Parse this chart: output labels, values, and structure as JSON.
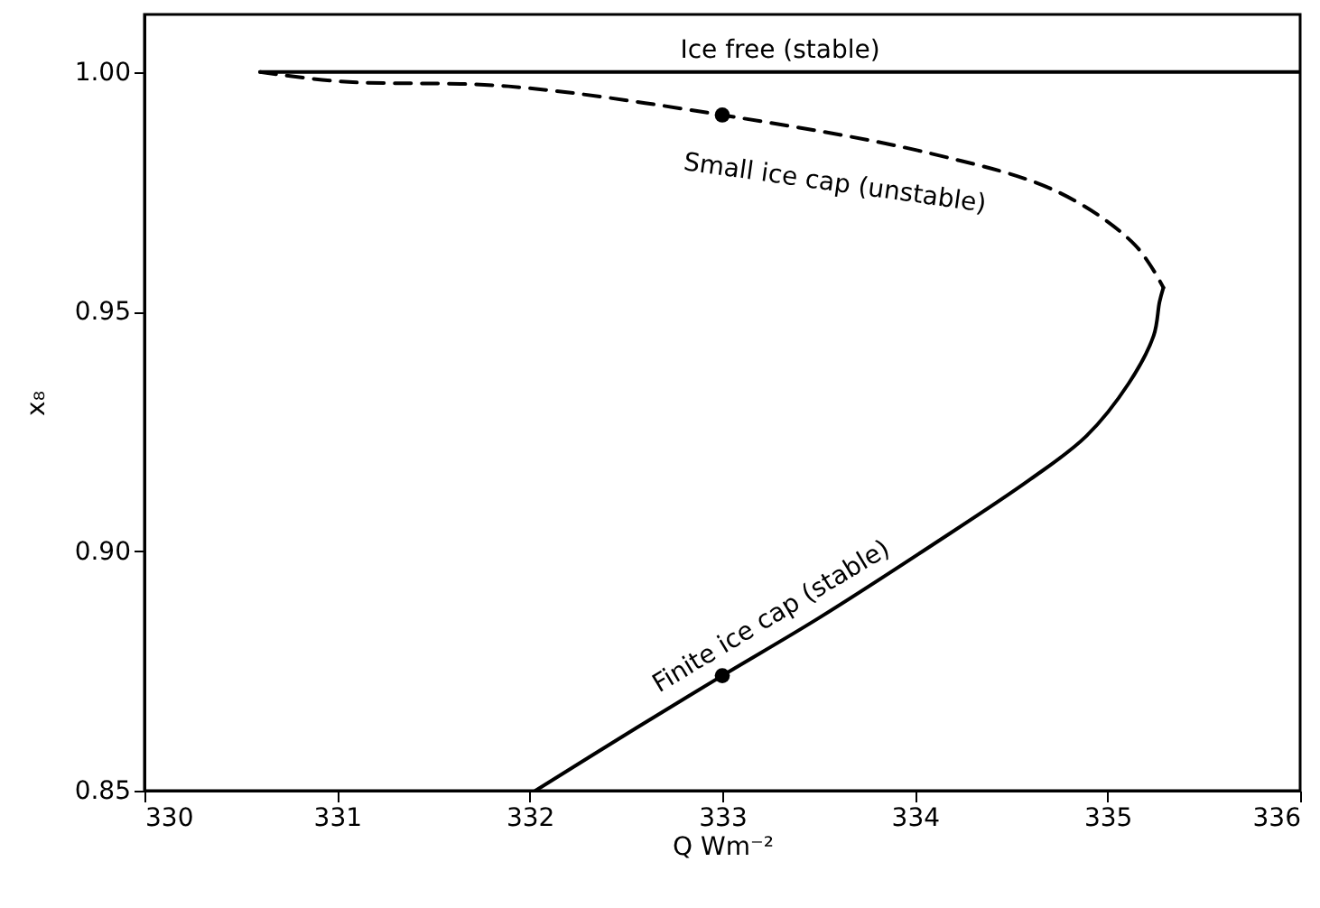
{
  "chart_data": {
    "type": "line",
    "xlabel": "Q Wm⁻²",
    "ylabel": "x₈",
    "xlim": [
      330,
      336
    ],
    "xticks": [
      330,
      331,
      332,
      333,
      334,
      335,
      336
    ],
    "ylim": [
      0.85,
      1.012
    ],
    "yticks": [
      0.85,
      {
        "value": 0.9,
        "label": "0.90"
      },
      0.95,
      {
        "value": 1,
        "label": "1.00"
      }
    ],
    "grid": false,
    "series": [
      {
        "name": "Ice free (stable)",
        "color": "#000000",
        "line_style": "solid",
        "x": [
          330.6,
          336
        ],
        "values": [
          1.0,
          1.0
        ]
      },
      {
        "name": "Small ice cap (unstable)",
        "color": "#000000",
        "line_style": "dashed",
        "x": [
          330.6,
          331.02,
          331.89,
          333.0,
          334.08,
          334.74,
          335.14,
          335.29
        ],
        "values": [
          1.0,
          0.998,
          0.997,
          0.991,
          0.983,
          0.975,
          0.964,
          0.955
        ]
      },
      {
        "name": "Finite ice cap (stable)",
        "color": "#000000",
        "line_style": "solid",
        "x": [
          335.29,
          335.27,
          335.24,
          335.11,
          334.89,
          334.6,
          334.08,
          333.5,
          333.0,
          332.55,
          332.03
        ],
        "values": [
          0.955,
          0.952,
          0.945,
          0.935,
          0.924,
          0.915,
          0.901,
          0.886,
          0.874,
          0.863,
          0.85
        ]
      },
      {
        "type": "scatter",
        "color": "#000000",
        "marker": "circle",
        "x": [
          333,
          333
        ],
        "values": [
          0.991,
          0.874
        ]
      }
    ]
  }
}
